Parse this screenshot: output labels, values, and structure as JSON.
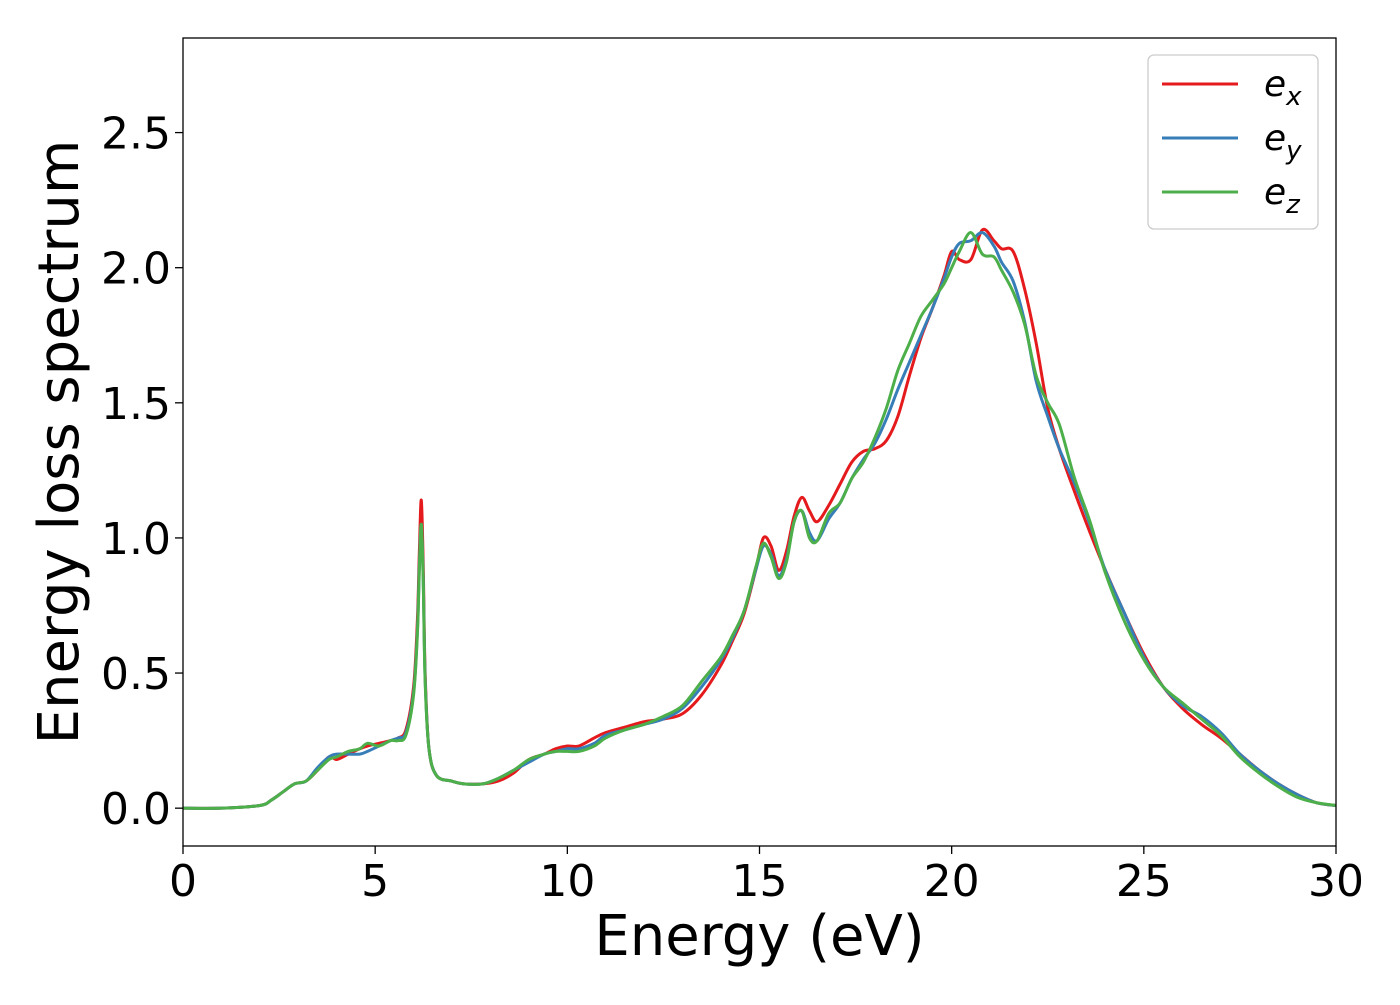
{
  "chart_data": {
    "type": "line",
    "title": "",
    "xlabel": "Energy (eV)",
    "ylabel": "Energy loss spectrum",
    "xlim": [
      0,
      30
    ],
    "ylim": [
      -0.14,
      2.85
    ],
    "xticks": [
      0,
      5,
      10,
      15,
      20,
      25,
      30
    ],
    "yticks": [
      0.0,
      0.5,
      1.0,
      1.5,
      2.0,
      2.5
    ],
    "xtick_labels": [
      "0",
      "5",
      "10",
      "15",
      "20",
      "25",
      "30"
    ],
    "ytick_labels": [
      "0.0",
      "0.5",
      "1.0",
      "1.5",
      "2.0",
      "2.5"
    ],
    "grid": false,
    "legend_position": "top-right",
    "series": [
      {
        "name": "e_x",
        "legend_base": "e",
        "legend_sub": "x",
        "color": "#e41a1c",
        "x": [
          0,
          1,
          2,
          2.3,
          2.6,
          2.9,
          3.2,
          3.5,
          3.8,
          4.0,
          4.3,
          4.6,
          4.8,
          5.1,
          5.4,
          5.6,
          5.8,
          6.0,
          6.1,
          6.15,
          6.2,
          6.25,
          6.3,
          6.4,
          6.6,
          7.0,
          7.3,
          7.8,
          8.2,
          8.6,
          9.0,
          9.4,
          9.7,
          10.0,
          10.3,
          10.7,
          11.0,
          11.5,
          12.0,
          12.5,
          13.0,
          13.5,
          14.0,
          14.3,
          14.6,
          14.9,
          15.1,
          15.3,
          15.5,
          15.7,
          15.9,
          16.1,
          16.3,
          16.5,
          16.8,
          17.1,
          17.4,
          17.7,
          18.0,
          18.3,
          18.6,
          18.9,
          19.2,
          19.5,
          19.8,
          20.0,
          20.2,
          20.5,
          20.8,
          21.1,
          21.3,
          21.6,
          21.9,
          22.2,
          22.5,
          22.8,
          23.2,
          23.6,
          24.0,
          24.5,
          25.0,
          25.5,
          26.0,
          26.5,
          27.0,
          27.5,
          28.0,
          28.5,
          29.0,
          29.5,
          30.0
        ],
        "y": [
          0.0,
          0.0,
          0.01,
          0.03,
          0.06,
          0.09,
          0.1,
          0.14,
          0.19,
          0.18,
          0.2,
          0.22,
          0.23,
          0.24,
          0.25,
          0.26,
          0.29,
          0.45,
          0.7,
          0.95,
          1.14,
          0.9,
          0.5,
          0.22,
          0.12,
          0.1,
          0.09,
          0.09,
          0.1,
          0.13,
          0.18,
          0.2,
          0.22,
          0.23,
          0.23,
          0.26,
          0.28,
          0.3,
          0.32,
          0.33,
          0.35,
          0.42,
          0.53,
          0.62,
          0.72,
          0.88,
          1.0,
          0.97,
          0.88,
          0.95,
          1.08,
          1.15,
          1.1,
          1.06,
          1.12,
          1.2,
          1.28,
          1.32,
          1.33,
          1.36,
          1.45,
          1.6,
          1.74,
          1.85,
          1.97,
          2.06,
          2.03,
          2.03,
          2.14,
          2.1,
          2.07,
          2.06,
          1.92,
          1.72,
          1.48,
          1.33,
          1.17,
          1.02,
          0.88,
          0.72,
          0.57,
          0.45,
          0.37,
          0.31,
          0.26,
          0.2,
          0.14,
          0.09,
          0.05,
          0.02,
          0.01
        ]
      },
      {
        "name": "e_y",
        "legend_base": "e",
        "legend_sub": "y",
        "color": "#377eb8",
        "x": [
          0,
          1,
          2,
          2.3,
          2.6,
          2.9,
          3.2,
          3.5,
          3.8,
          4.0,
          4.3,
          4.6,
          4.8,
          5.1,
          5.4,
          5.6,
          5.8,
          6.0,
          6.1,
          6.15,
          6.2,
          6.25,
          6.3,
          6.4,
          6.6,
          7.0,
          7.3,
          7.8,
          8.2,
          8.6,
          9.0,
          9.4,
          9.7,
          10.0,
          10.3,
          10.7,
          11.0,
          11.5,
          12.0,
          12.5,
          13.0,
          13.5,
          14.0,
          14.3,
          14.6,
          14.9,
          15.1,
          15.3,
          15.5,
          15.7,
          15.9,
          16.1,
          16.3,
          16.5,
          16.8,
          17.1,
          17.4,
          17.7,
          18.0,
          18.3,
          18.6,
          18.9,
          19.2,
          19.5,
          19.8,
          20.0,
          20.2,
          20.5,
          20.8,
          21.1,
          21.3,
          21.6,
          21.9,
          22.2,
          22.5,
          22.8,
          23.2,
          23.6,
          24.0,
          24.5,
          25.0,
          25.5,
          26.0,
          26.5,
          27.0,
          27.5,
          28.0,
          28.5,
          29.0,
          29.5,
          30.0
        ],
        "y": [
          0.0,
          0.0,
          0.01,
          0.03,
          0.06,
          0.09,
          0.1,
          0.15,
          0.19,
          0.2,
          0.2,
          0.2,
          0.21,
          0.23,
          0.25,
          0.26,
          0.28,
          0.43,
          0.66,
          0.9,
          1.05,
          0.85,
          0.48,
          0.22,
          0.12,
          0.1,
          0.09,
          0.09,
          0.11,
          0.14,
          0.17,
          0.2,
          0.21,
          0.22,
          0.22,
          0.24,
          0.27,
          0.29,
          0.31,
          0.33,
          0.37,
          0.45,
          0.55,
          0.63,
          0.73,
          0.88,
          0.97,
          0.94,
          0.86,
          0.92,
          1.06,
          1.1,
          1.02,
          0.99,
          1.07,
          1.13,
          1.22,
          1.29,
          1.35,
          1.44,
          1.55,
          1.65,
          1.75,
          1.85,
          1.96,
          2.04,
          2.09,
          2.1,
          2.13,
          2.08,
          2.02,
          1.95,
          1.8,
          1.58,
          1.45,
          1.33,
          1.2,
          1.05,
          0.88,
          0.72,
          0.56,
          0.45,
          0.38,
          0.34,
          0.28,
          0.2,
          0.14,
          0.09,
          0.05,
          0.02,
          0.01
        ]
      },
      {
        "name": "e_z",
        "legend_base": "e",
        "legend_sub": "z",
        "color": "#4daf4a",
        "x": [
          0,
          1,
          2,
          2.3,
          2.6,
          2.9,
          3.2,
          3.5,
          3.8,
          4.0,
          4.3,
          4.6,
          4.8,
          5.1,
          5.4,
          5.6,
          5.8,
          6.0,
          6.1,
          6.15,
          6.2,
          6.25,
          6.3,
          6.4,
          6.6,
          7.0,
          7.3,
          7.8,
          8.2,
          8.6,
          9.0,
          9.4,
          9.7,
          10.0,
          10.3,
          10.7,
          11.0,
          11.5,
          12.0,
          12.5,
          13.0,
          13.5,
          14.0,
          14.3,
          14.6,
          14.9,
          15.1,
          15.3,
          15.5,
          15.7,
          15.9,
          16.1,
          16.3,
          16.5,
          16.8,
          17.1,
          17.4,
          17.7,
          18.0,
          18.3,
          18.6,
          18.9,
          19.2,
          19.5,
          19.8,
          20.0,
          20.2,
          20.5,
          20.8,
          21.1,
          21.3,
          21.6,
          21.9,
          22.2,
          22.5,
          22.8,
          23.2,
          23.6,
          24.0,
          24.5,
          25.0,
          25.5,
          26.0,
          26.5,
          27.0,
          27.5,
          28.0,
          28.5,
          29.0,
          29.5,
          30.0
        ],
        "y": [
          0.0,
          0.0,
          0.01,
          0.03,
          0.06,
          0.09,
          0.1,
          0.14,
          0.18,
          0.19,
          0.21,
          0.22,
          0.24,
          0.23,
          0.25,
          0.25,
          0.27,
          0.42,
          0.65,
          0.88,
          1.05,
          0.84,
          0.47,
          0.22,
          0.12,
          0.1,
          0.09,
          0.09,
          0.11,
          0.14,
          0.18,
          0.2,
          0.21,
          0.21,
          0.21,
          0.23,
          0.26,
          0.29,
          0.31,
          0.34,
          0.38,
          0.47,
          0.56,
          0.64,
          0.73,
          0.89,
          0.98,
          0.93,
          0.85,
          0.91,
          1.06,
          1.1,
          1.0,
          0.99,
          1.09,
          1.13,
          1.22,
          1.28,
          1.37,
          1.48,
          1.62,
          1.72,
          1.82,
          1.88,
          1.94,
          2.0,
          2.06,
          2.13,
          2.05,
          2.04,
          1.99,
          1.91,
          1.79,
          1.6,
          1.5,
          1.42,
          1.22,
          1.06,
          0.87,
          0.69,
          0.55,
          0.45,
          0.39,
          0.33,
          0.27,
          0.19,
          0.13,
          0.08,
          0.04,
          0.02,
          0.01
        ]
      }
    ]
  }
}
